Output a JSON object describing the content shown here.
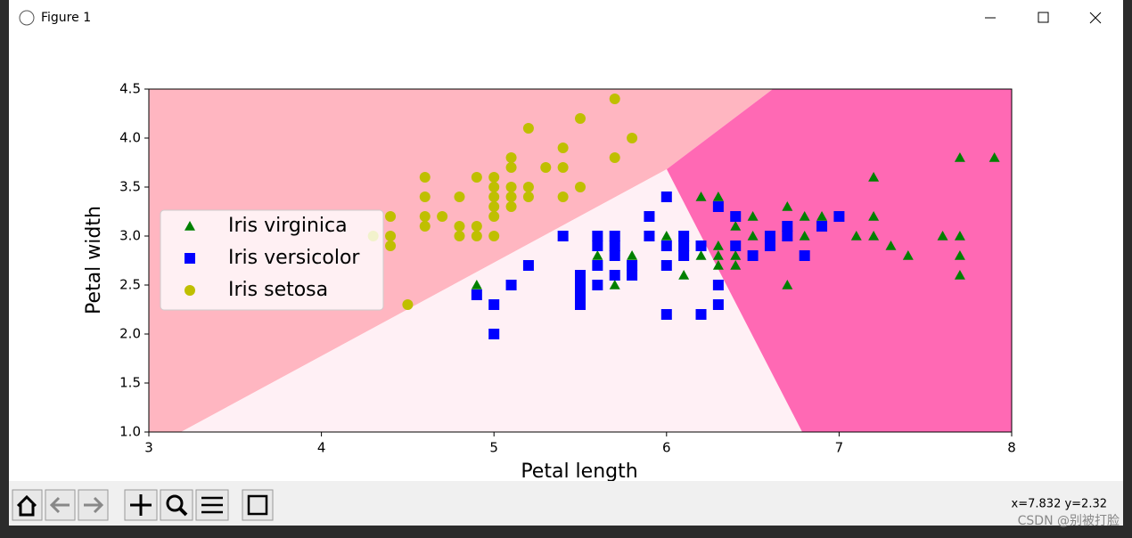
{
  "window": {
    "title": "Figure 1",
    "status": "x=7.832 y=2.32",
    "watermark": "CSDN @别被打脸"
  },
  "chart_data": {
    "type": "scatter",
    "xlabel": "Petal length",
    "ylabel": "Petal width",
    "xlim": [
      3,
      8
    ],
    "ylim": [
      1.0,
      4.5
    ],
    "xticks": [
      3,
      4,
      5,
      6,
      7,
      8
    ],
    "yticks": [
      {
        "value": 1,
        "label": "1.0"
      },
      {
        "value": 1.5,
        "label": "1.5"
      },
      {
        "value": 2,
        "label": "2.0"
      },
      {
        "value": 2.5,
        "label": "2.5"
      },
      {
        "value": 3,
        "label": "3.0"
      },
      {
        "value": 3.5,
        "label": "3.5"
      },
      {
        "value": 4,
        "label": "4.0"
      },
      {
        "value": 4.5,
        "label": "4.5"
      }
    ],
    "legend": "center left",
    "series": [
      {
        "name": "Iris virginica",
        "color": "#008000",
        "marker": "^",
        "x": [
          4.9,
          5.6,
          5.7,
          5.8,
          5.8,
          6.0,
          6.1,
          6.2,
          6.2,
          6.3,
          6.3,
          6.3,
          6.3,
          6.3,
          6.4,
          6.4,
          6.4,
          6.5,
          6.5,
          6.7,
          6.7,
          6.7,
          6.7,
          6.8,
          6.8,
          6.9,
          7.1,
          7.2,
          7.2,
          7.2,
          7.3,
          7.4,
          7.6,
          7.7,
          7.7,
          7.7,
          7.7,
          7.9
        ],
        "values": [
          2.5,
          2.8,
          2.5,
          2.8,
          2.7,
          3.0,
          2.6,
          3.4,
          2.8,
          3.4,
          3.3,
          2.9,
          2.8,
          2.7,
          3.1,
          2.8,
          2.7,
          3.2,
          3.0,
          3.3,
          3.1,
          3.0,
          2.5,
          3.2,
          3.0,
          3.2,
          3.0,
          3.6,
          3.2,
          3.0,
          2.9,
          2.8,
          3.0,
          3.8,
          3.0,
          2.8,
          2.6,
          3.8
        ]
      },
      {
        "name": "Iris versicolor",
        "color": "#0000ff",
        "marker": "s",
        "x": [
          4.9,
          5.0,
          5.0,
          5.1,
          5.2,
          5.4,
          5.5,
          5.5,
          5.5,
          5.5,
          5.6,
          5.6,
          5.6,
          5.6,
          5.7,
          5.7,
          5.7,
          5.7,
          5.8,
          5.8,
          5.9,
          5.9,
          6.0,
          6.0,
          6.0,
          6.0,
          6.1,
          6.1,
          6.1,
          6.2,
          6.2,
          6.3,
          6.3,
          6.3,
          6.4,
          6.4,
          6.5,
          6.6,
          6.6,
          6.7,
          6.7,
          6.8,
          6.9,
          7.0
        ],
        "values": [
          2.4,
          2.3,
          2.0,
          2.5,
          2.7,
          3.0,
          2.6,
          2.5,
          2.4,
          2.3,
          3.0,
          2.9,
          2.7,
          2.5,
          3.0,
          2.9,
          2.8,
          2.6,
          2.7,
          2.6,
          3.2,
          3.0,
          3.4,
          2.9,
          2.7,
          2.2,
          3.0,
          2.9,
          2.8,
          2.9,
          2.2,
          3.3,
          2.5,
          2.3,
          3.2,
          2.9,
          2.8,
          3.0,
          2.9,
          3.1,
          3.0,
          2.8,
          3.1,
          3.2
        ]
      },
      {
        "name": "Iris setosa",
        "color": "#bfbf00",
        "marker": "o",
        "x": [
          4.3,
          4.4,
          4.4,
          4.4,
          4.5,
          4.6,
          4.6,
          4.6,
          4.6,
          4.7,
          4.8,
          4.8,
          4.8,
          4.9,
          4.9,
          4.9,
          5.0,
          5.0,
          5.0,
          5.0,
          5.0,
          5.0,
          5.1,
          5.1,
          5.1,
          5.1,
          5.1,
          5.2,
          5.2,
          5.2,
          5.3,
          5.4,
          5.4,
          5.4,
          5.5,
          5.5,
          5.7,
          5.7,
          5.8
        ],
        "values": [
          3.0,
          3.2,
          3.0,
          2.9,
          2.3,
          3.6,
          3.4,
          3.2,
          3.1,
          3.2,
          3.4,
          3.1,
          3.0,
          3.6,
          3.1,
          3.0,
          3.6,
          3.5,
          3.4,
          3.3,
          3.2,
          3.0,
          3.8,
          3.7,
          3.5,
          3.4,
          3.3,
          4.1,
          3.5,
          3.4,
          3.7,
          3.9,
          3.7,
          3.4,
          4.2,
          3.5,
          4.4,
          3.8,
          4.0
        ]
      }
    ]
  }
}
